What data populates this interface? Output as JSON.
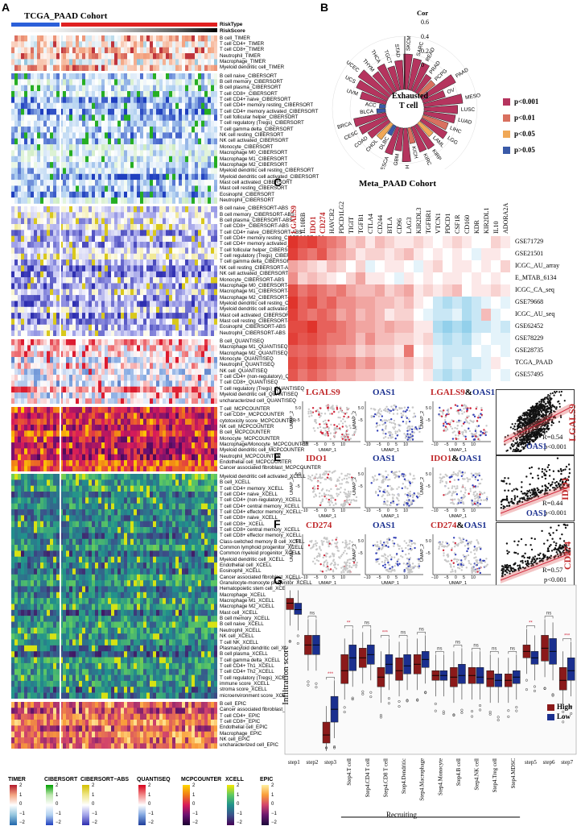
{
  "panel_a": {
    "letter": "A",
    "title": "TCGA_PAAD Cohort",
    "annotation_labels": [
      "RiskType",
      "RiskScore"
    ],
    "blocks": [
      {
        "name": "TIMER",
        "rows": [
          "B cell_TIMER",
          "T cell CD4+_TIMER",
          "T cell CD8+_TIMER",
          "Neutrophil_TIMER",
          "Macrophage_TIMER",
          "Myeloid dendritic cell_TIMER"
        ]
      },
      {
        "name": "CIBERSORT",
        "rows": [
          "B cell naive_CIBERSORT",
          "B cell memory_CIBERSORT",
          "B cell plasma_CIBERSORT",
          "T cell CD8+_CIBERSORT",
          "T cell CD4+ naive_CIBERSORT",
          "T cell CD4+ memory resting_CIBERSORT",
          "T cell CD4+ memory activated_CIBERSORT",
          "T cell follicular helper_CIBERSORT",
          "T cell regulatory (Tregs)_CIBERSORT",
          "T cell gamma delta_CIBERSORT",
          "NK cell resting_CIBERSORT",
          "NK cell activated_CIBERSORT",
          "Monocyte_CIBERSORT",
          "Macrophage M0_CIBERSORT",
          "Macrophage M1_CIBERSORT",
          "Macrophage M2_CIBERSORT",
          "Myeloid dendritic cell resting_CIBERSORT",
          "Myeloid dendritic cell activated_CIBERSORT",
          "Mast cell activated_CIBERSORT",
          "Mast cell resting_CIBERSORT",
          "Eosinophil_CIBERSORT",
          "Neutrophil_CIBERSORT"
        ]
      },
      {
        "name": "CIBERSORT-ABS",
        "rows": [
          "B cell naive_CIBERSORT-ABS",
          "B cell memory_CIBERSORT-ABS",
          "B cell plasma_CIBERSORT-ABS",
          "T cell CD8+_CIBERSORT-ABS",
          "T cell CD4+ naive_CIBERSORT-ABS",
          "T cell CD4+ memory resting_CIBERSORT-ABS",
          "T cell CD4+ memory activated_CIBERSORT-ABS",
          "T cell follicular helper_CIBERSORT-ABS",
          "T cell regulatory (Tregs)_CIBERSORT-ABS",
          "T cell gamma delta_CIBERSORT-ABS",
          "NK cell resting_CIBERSORT-ABS",
          "NK cell activated_CIBERSORT-ABS",
          "Monocyte_CIBERSORT-ABS",
          "Macrophage M0_CIBERSORT-ABS",
          "Macrophage M1_CIBERSORT-ABS",
          "Macrophage M2_CIBERSORT-ABS",
          "Myeloid dendritic cell resting_CIBERSORT-ABS",
          "Myeloid dendritic cell activated_CIBERSORT-ABS",
          "Mast cell activated_CIBERSORT-ABS",
          "Mast cell resting_CIBERSORT-ABS",
          "Eosinophil_CIBERSORT-ABS",
          "Neutrophil_CIBERSORT-ABS"
        ]
      },
      {
        "name": "QUANTISEQ",
        "rows": [
          "B cell_QUANTISEQ",
          "Macrophage M1_QUANTISEQ",
          "Macrophage M2_QUANTISEQ",
          "Monocyte_QUANTISEQ",
          "Neutrophil_QUANTISEQ",
          "NK cell_QUANTISEQ",
          "T cell CD4+ (non-regulatory)_QUANTISEQ",
          "T cell CD8+_QUANTISEQ",
          "T cell regulatory (Tregs)_QUANTISEQ",
          "Myeloid dendritic cell_QUANTISEQ",
          "uncharacterized cell_QUANTISEQ"
        ]
      },
      {
        "name": "MCPCOUNTER",
        "rows": [
          "T cell_MCPCOUNTER",
          "T cell CD8+_MCPCOUNTER",
          "cytotoxicity score_MCPCOUNTER",
          "NK cell_MCPCOUNTER",
          "B cell_MCPCOUNTER",
          "Monocyte_MCPCOUNTER",
          "Macrophage/Monocyte_MCPCOUNTER",
          "Myeloid dendritic cell_MCPCOUNTER",
          "Neutrophil_MCPCOUNTER",
          "Endothelial cell_MCPCOUNTER",
          "Cancer associated fibroblast_MCPCOUNTER"
        ]
      },
      {
        "name": "XCELL",
        "rows": [
          "Myeloid dendritic cell activated_XCELL",
          "B cell_XCELL",
          "T cell CD4+ memory_XCELL",
          "T cell CD4+ naive_XCELL",
          "T cell CD4+ (non-regulatory)_XCELL",
          "T cell CD4+ central memory_XCELL",
          "T cell CD4+ effector memory_XCELL",
          "T cell CD8+ naive_XCELL",
          "T cell CD8+_XCELL",
          "T cell CD8+ central memory_XCELL",
          "T cell CD8+ effector memory_XCELL",
          "Class-switched memory B cell_XCELL",
          "Common lymphoid progenitor_XCELL",
          "Common myeloid progenitor_XCELL",
          "Myeloid dendritic cell_XCELL",
          "Endothelial cell_XCELL",
          "Eosinophil_XCELL",
          "Cancer associated fibroblast_XCELL",
          "Granulocyte-monocyte progenitor_XCELL",
          "Hematopoietic stem cell_XCELL",
          "Macrophage_XCELL",
          "Macrophage M1_XCELL",
          "Macrophage M2_XCELL",
          "Mast cell_XCELL",
          "B cell memory_XCELL",
          "B cell naive_XCELL",
          "Neutrophil_XCELL",
          "NK cell_XCELL",
          "T cell NK_XCELL",
          "Plasmacytoid dendritic cell_XCELL",
          "B cell plasma_XCELL",
          "T cell gamma delta_XCELL",
          "T cell CD4+ Th1_XCELL",
          "T cell CD4+ Th2_XCELL",
          "T cell regulatory (Tregs)_XCELL",
          "immune score_XCELL",
          "stroma score_XCELL",
          "microenvironment score_XCELL"
        ]
      },
      {
        "name": "EPIC",
        "rows": [
          "B cell_EPIC",
          "Cancer associated fibroblast_EPIC",
          "T cell CD4+_EPIC",
          "T cell CD8+_EPIC",
          "Endothelial cell_EPIC",
          "Macrophage_EPIC",
          "NK cell_EPIC",
          "uncharacterized cell_EPIC"
        ]
      }
    ],
    "legends": [
      {
        "name": "TIMER",
        "ticks": [
          "2",
          "1",
          "0",
          "−1",
          "−2"
        ],
        "colors": [
          "#b2182b",
          "#f4a582",
          "#ffffff",
          "#92c5de",
          "#2166ac"
        ]
      },
      {
        "name": "CIBERSORT",
        "ticks": [
          "2",
          "1",
          "0",
          "−1",
          "−2"
        ],
        "colors": [
          "#00a000",
          "#bfe7b0",
          "#ffffff",
          "#b0d0f0",
          "#1f3fbf"
        ]
      },
      {
        "name": "CIBERSORT−ABS",
        "ticks": [
          "2",
          "1",
          "0",
          "−1",
          "−2"
        ],
        "colors": [
          "#d4c000",
          "#efe68a",
          "#ffffff",
          "#9fa0e8",
          "#2e2eb0"
        ]
      },
      {
        "name": "QUANTISEQ",
        "ticks": [
          "2",
          "1",
          "0",
          "−1",
          "−2"
        ],
        "colors": [
          "#d7001a",
          "#f28a8a",
          "#ffffff",
          "#7fa5e0",
          "#1e3d9a"
        ]
      },
      {
        "name": "MCPCOUNTER",
        "ticks": [
          "2",
          "1",
          "0",
          "−1",
          "−2"
        ],
        "colors": [
          "#ffd700",
          "#f07a1a",
          "#d81b5a",
          "#6a1070",
          "#1a0030"
        ]
      },
      {
        "name": "XCELL",
        "ticks": [
          "2",
          "1",
          "0",
          "−1",
          "−2"
        ],
        "colors": [
          "#f5e800",
          "#5ec962",
          "#21918c",
          "#3b528b",
          "#440154"
        ]
      },
      {
        "name": "EPIC",
        "ticks": [
          "2",
          "1",
          "0",
          "−1",
          "−2"
        ],
        "colors": [
          "#fff0a0",
          "#f99d3a",
          "#d2436c",
          "#6a176e",
          "#1a0a3a"
        ]
      }
    ]
  },
  "panel_b": {
    "letter": "B",
    "center_label_1": "Exhausted",
    "center_label_2": "T cell",
    "axis_label": "Cor",
    "axis_ticks": [
      "0.6",
      "0.4",
      "0.2",
      "0"
    ],
    "cancers": [
      "UCS",
      "UCEC",
      "THYM",
      "THCA",
      "TGCT",
      "STAD",
      "SKCM",
      "SARC",
      "READ",
      "PRAD",
      "PCPG",
      "PAAD",
      "OV",
      "MESO",
      "LUSC",
      "LUAD",
      "LIHC",
      "LGG",
      "LAML",
      "KIRP",
      "KIRC",
      "KICH",
      "HNSC",
      "GBM",
      "ESCA",
      "DLBC",
      "CHOL",
      "COAD",
      "CESC",
      "BRCA",
      "BLCA",
      "ACC",
      "UVM"
    ],
    "cor_values": [
      0.38,
      0.42,
      0.3,
      0.34,
      0.28,
      0.33,
      0.4,
      0.36,
      0.34,
      0.24,
      0.22,
      0.43,
      0.26,
      0.44,
      0.38,
      0.36,
      0.3,
      0.33,
      0.2,
      0.31,
      0.3,
      0.18,
      0.38,
      0.26,
      0.32,
      0.12,
      0.22,
      0.28,
      0.34,
      0.37,
      0.1,
      0.07,
      0.3
    ],
    "sig": [
      1,
      1,
      1,
      1,
      1,
      1,
      1,
      1,
      1,
      1,
      2,
      1,
      1,
      1,
      1,
      1,
      2,
      1,
      3,
      1,
      1,
      2,
      1,
      1,
      1,
      4,
      3,
      1,
      1,
      1,
      4,
      4,
      1
    ],
    "legend": [
      {
        "label": "p<0.001",
        "color": "#b5345e"
      },
      {
        "label": "p<0.01",
        "color": "#d9705f"
      },
      {
        "label": "p<0.05",
        "color": "#f0a857"
      },
      {
        "label": "p>0.05",
        "color": "#3a5aa8"
      }
    ]
  },
  "panel_c": {
    "letter": "C",
    "title": "Meta_PAAD Cohort",
    "genes": [
      "LGALS9",
      "IL10RB",
      "IDO1",
      "CD274",
      "HAVCR2",
      "PDCD1LG2",
      "TIGIT",
      "TGFB1",
      "CTLA4",
      "CD244",
      "BTLA",
      "CD96",
      "LAG3",
      "KIR2DL3",
      "TGFBR1",
      "VTCN1",
      "PDCD1",
      "CSF1R",
      "CD160",
      "KDR",
      "KIR2DL1",
      "IL10",
      "ADORA2A"
    ],
    "highlighted_genes": [
      "LGALS9",
      "IDO1",
      "CD274"
    ],
    "cohorts": [
      "GSE71729",
      "GSE21501",
      "ICGC_AU_array",
      "E_MTAB_6134",
      "ICGC_CA_seq",
      "GSE79668",
      "ICGC_AU_seq",
      "GSE62452",
      "GSE78229",
      "GSE28735",
      "TCGA_PAAD",
      "GSE57495"
    ],
    "values": [
      [
        0.9,
        0.8,
        0.85,
        0.7,
        0.6,
        0.5,
        0.2,
        0.3,
        0.1,
        0.3,
        0.2,
        0.1,
        0.1,
        0.2,
        0.1,
        0.0,
        0.1,
        0.2,
        0.1,
        0.0,
        0.0,
        0.2,
        0.1
      ],
      [
        0.85,
        0.7,
        0.6,
        0.75,
        0.5,
        0.4,
        0.3,
        0.1,
        0.2,
        0.2,
        0.1,
        0.2,
        0.3,
        0.1,
        0.0,
        0.1,
        0.0,
        0.1,
        0.0,
        -0.1,
        0.1,
        0.1,
        0.0
      ],
      [
        0.4,
        0.3,
        0.2,
        0.1,
        0.3,
        0.2,
        0.0,
        0.2,
        -0.1,
        0.0,
        0.1,
        0.1,
        0.0,
        -0.1,
        0.1,
        0.2,
        0.0,
        0.1,
        0.1,
        0.0,
        0.1,
        0.0,
        0.2
      ],
      [
        0.5,
        0.2,
        0.3,
        0.2,
        0.1,
        0.0,
        0.2,
        0.4,
        0.1,
        0.1,
        0.0,
        -0.1,
        0.1,
        0.0,
        0.1,
        0.0,
        0.1,
        0.1,
        0.0,
        0.1,
        0.0,
        0.1,
        0.0
      ],
      [
        0.8,
        0.6,
        0.7,
        0.6,
        0.5,
        0.6,
        0.4,
        0.3,
        0.3,
        0.4,
        0.2,
        0.3,
        0.4,
        0.1,
        0.2,
        0.1,
        0.2,
        0.3,
        0.0,
        0.1,
        0.1,
        0.2,
        0.1
      ],
      [
        0.9,
        0.7,
        0.8,
        0.6,
        0.7,
        0.5,
        0.5,
        0.4,
        0.4,
        0.3,
        0.3,
        0.2,
        0.3,
        0.1,
        0.0,
        -0.2,
        -0.3,
        -0.2,
        -0.3,
        -0.2,
        -0.1,
        0.0,
        -0.1
      ],
      [
        0.85,
        0.7,
        0.6,
        0.7,
        0.6,
        0.4,
        0.5,
        0.3,
        0.4,
        0.3,
        0.1,
        0.2,
        0.2,
        0.0,
        -0.1,
        -0.2,
        -0.2,
        -0.1,
        -0.3,
        -0.2,
        0.3,
        -0.1,
        0.0
      ],
      [
        0.8,
        0.8,
        0.9,
        0.7,
        0.7,
        0.6,
        0.5,
        0.4,
        0.4,
        0.3,
        0.4,
        0.3,
        0.3,
        0.1,
        0.1,
        -0.3,
        -0.4,
        -0.3,
        -0.4,
        -0.2,
        -0.2,
        -0.1,
        -0.2
      ],
      [
        0.85,
        0.75,
        0.8,
        0.7,
        0.6,
        0.6,
        0.5,
        0.3,
        0.5,
        0.3,
        0.3,
        0.2,
        0.2,
        0.1,
        0.2,
        -0.2,
        -0.3,
        -0.2,
        -0.3,
        -0.1,
        0.0,
        -0.1,
        -0.1
      ],
      [
        0.7,
        0.65,
        0.7,
        0.6,
        0.5,
        0.4,
        0.4,
        0.2,
        0.3,
        0.2,
        0.2,
        0.1,
        0.6,
        0.0,
        0.1,
        -0.1,
        -0.2,
        -0.2,
        -0.2,
        0.0,
        -0.1,
        0.0,
        -0.1
      ],
      [
        0.8,
        0.7,
        0.8,
        0.7,
        0.6,
        0.5,
        0.6,
        0.4,
        0.5,
        0.3,
        0.3,
        0.2,
        0.3,
        0.1,
        0.2,
        -0.1,
        -0.2,
        -0.1,
        -0.2,
        -0.2,
        -0.1,
        0.1,
        0.0
      ],
      [
        0.75,
        0.6,
        0.7,
        0.6,
        0.5,
        0.4,
        0.4,
        0.3,
        0.3,
        0.2,
        0.2,
        0.1,
        0.2,
        0.0,
        0.1,
        -0.2,
        -0.3,
        -0.2,
        -0.3,
        -0.1,
        -0.1,
        0.0,
        -0.1
      ]
    ]
  },
  "panel_d": {
    "letter": "D",
    "gene_a": "LGALS9",
    "gene_b": "OAS1",
    "combo_amp": "&",
    "axis_x": "UMAP_1",
    "axis_y": "UMAP_2",
    "ticks_x": [
      "−10",
      "−5",
      "0",
      "5",
      "10"
    ],
    "ticks_y": [
      "5",
      "0",
      "−5"
    ],
    "scatter_ylabel": "LGALS9",
    "scatter_xlabel": "",
    "r_text": "R=0.54",
    "p_text": "p<0.001"
  },
  "panel_e": {
    "letter": "E",
    "gene_a": "IDO1",
    "gene_b": "OAS1",
    "combo_amp": "&",
    "axis_x": "UMAP_1",
    "axis_y": "UMAP_2",
    "ticks_x": [
      "−10",
      "−5",
      "0",
      "5",
      "10"
    ],
    "ticks_y": [
      "5",
      "0",
      "−5"
    ],
    "scatter_ylabel": "IDO1",
    "scatter_xlabel": "OAS1",
    "r_text": "R=0.44",
    "p_text": "p<0.001"
  },
  "panel_f": {
    "letter": "F",
    "gene_a": "CD274",
    "gene_b": "OAS1",
    "combo_amp": "&",
    "axis_x": "UMAP_1",
    "axis_y": "UMAP_2",
    "ticks_x": [
      "−10",
      "−5",
      "0",
      "5",
      "10"
    ],
    "ticks_y": [
      "5",
      "0",
      "−5"
    ],
    "scatter_ylabel": "CD274",
    "scatter_xlabel": "OAS1",
    "r_text": "R=0.57",
    "p_text": "p<0.001",
    "bottom_label": "OAS1"
  },
  "panel_g": {
    "letter": "G",
    "ylabel": "Infiltration score",
    "group_label": "Recruiting",
    "legend": [
      {
        "label": "High",
        "color": "#8b1a1a"
      },
      {
        "label": "Low",
        "color": "#1a2f8f"
      }
    ],
    "steps": [
      "step1",
      "step2",
      "step3",
      "Step4.T cell",
      "Step4.CD4 T cell",
      "Step4.CD8 T cell",
      "Step4.Dendritic",
      "Step4.Macrophage",
      "Step4.Monocyte",
      "Step4.B cell",
      "Step4.NK cell",
      "Step4.Treg cell",
      "Step4.MDSC",
      "step5",
      "step6",
      "step7"
    ],
    "significance": [
      "ns",
      "ns",
      "***",
      "**",
      "ns",
      "***",
      "ns",
      "ns",
      "ns",
      "ns",
      "ns",
      "ns",
      "ns",
      "**",
      "ns",
      "***"
    ],
    "high_median": [
      0.92,
      0.66,
      0.1,
      0.5,
      0.58,
      0.46,
      0.5,
      0.54,
      0.47,
      0.46,
      0.47,
      0.45,
      0.44,
      0.62,
      0.64,
      0.44
    ],
    "low_median": [
      0.88,
      0.66,
      0.26,
      0.58,
      0.6,
      0.54,
      0.53,
      0.57,
      0.47,
      0.47,
      0.46,
      0.44,
      0.46,
      0.58,
      0.62,
      0.5
    ],
    "high_q": [
      [
        0.88,
        0.95
      ],
      [
        0.6,
        0.72
      ],
      [
        0.05,
        0.18
      ],
      [
        0.42,
        0.6
      ],
      [
        0.52,
        0.64
      ],
      [
        0.4,
        0.52
      ],
      [
        0.44,
        0.58
      ],
      [
        0.48,
        0.6
      ],
      [
        0.44,
        0.5
      ],
      [
        0.4,
        0.52
      ],
      [
        0.42,
        0.52
      ],
      [
        0.4,
        0.5
      ],
      [
        0.4,
        0.48
      ],
      [
        0.58,
        0.66
      ],
      [
        0.56,
        0.72
      ],
      [
        0.38,
        0.52
      ]
    ],
    "low_q": [
      [
        0.85,
        0.92
      ],
      [
        0.6,
        0.72
      ],
      [
        0.18,
        0.34
      ],
      [
        0.5,
        0.66
      ],
      [
        0.54,
        0.66
      ],
      [
        0.48,
        0.6
      ],
      [
        0.48,
        0.6
      ],
      [
        0.52,
        0.62
      ],
      [
        0.44,
        0.5
      ],
      [
        0.42,
        0.54
      ],
      [
        0.42,
        0.52
      ],
      [
        0.4,
        0.48
      ],
      [
        0.42,
        0.5
      ],
      [
        0.54,
        0.62
      ],
      [
        0.54,
        0.7
      ],
      [
        0.44,
        0.58
      ]
    ]
  }
}
